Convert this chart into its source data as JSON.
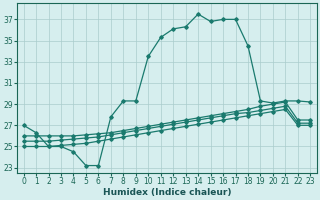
{
  "xlabel": "Humidex (Indice chaleur)",
  "background_color": "#d6eeee",
  "grid_color": "#aacccc",
  "line_color": "#1a7a6e",
  "xlim": [
    -0.5,
    23.5
  ],
  "ylim": [
    22.5,
    38.5
  ],
  "yticks": [
    23,
    25,
    27,
    29,
    31,
    33,
    35,
    37
  ],
  "xticks": [
    0,
    1,
    2,
    3,
    4,
    5,
    6,
    7,
    8,
    9,
    10,
    11,
    12,
    13,
    14,
    15,
    16,
    17,
    18,
    19,
    20,
    21,
    22,
    23
  ],
  "lines": [
    {
      "x": [
        0,
        1,
        2,
        3,
        4,
        5,
        6,
        7,
        8,
        9,
        10,
        11,
        12,
        13,
        14,
        15,
        16,
        17,
        18,
        19,
        20,
        21,
        22,
        23
      ],
      "y": [
        27.0,
        26.3,
        25.0,
        25.0,
        24.5,
        23.2,
        23.2,
        27.8,
        29.3,
        29.3,
        33.5,
        35.3,
        36.1,
        36.3,
        37.5,
        36.8,
        37.0,
        37.0,
        34.5,
        29.3,
        29.1,
        29.3,
        29.3,
        29.2
      ]
    },
    {
      "x": [
        0,
        1,
        2,
        3,
        4,
        5,
        6,
        7,
        8,
        9,
        10,
        11,
        12,
        13,
        14,
        15,
        16,
        17,
        18,
        19,
        20,
        21,
        22,
        23
      ],
      "y": [
        26.0,
        26.0,
        26.0,
        26.0,
        26.0,
        26.1,
        26.2,
        26.3,
        26.5,
        26.7,
        26.9,
        27.1,
        27.3,
        27.5,
        27.7,
        27.9,
        28.1,
        28.3,
        28.5,
        28.8,
        29.0,
        29.2,
        27.5,
        27.5
      ]
    },
    {
      "x": [
        0,
        1,
        2,
        3,
        4,
        5,
        6,
        7,
        8,
        9,
        10,
        11,
        12,
        13,
        14,
        15,
        16,
        17,
        18,
        19,
        20,
        21,
        22,
        23
      ],
      "y": [
        25.5,
        25.5,
        25.5,
        25.6,
        25.7,
        25.8,
        25.9,
        26.1,
        26.3,
        26.5,
        26.7,
        26.9,
        27.1,
        27.3,
        27.5,
        27.7,
        27.9,
        28.1,
        28.2,
        28.4,
        28.6,
        28.8,
        27.2,
        27.2
      ]
    },
    {
      "x": [
        0,
        1,
        2,
        3,
        4,
        5,
        6,
        7,
        8,
        9,
        10,
        11,
        12,
        13,
        14,
        15,
        16,
        17,
        18,
        19,
        20,
        21,
        22,
        23
      ],
      "y": [
        25.0,
        25.0,
        25.0,
        25.1,
        25.2,
        25.3,
        25.5,
        25.7,
        25.9,
        26.1,
        26.3,
        26.5,
        26.7,
        26.9,
        27.1,
        27.3,
        27.5,
        27.7,
        27.9,
        28.1,
        28.3,
        28.5,
        27.0,
        27.0
      ]
    }
  ]
}
